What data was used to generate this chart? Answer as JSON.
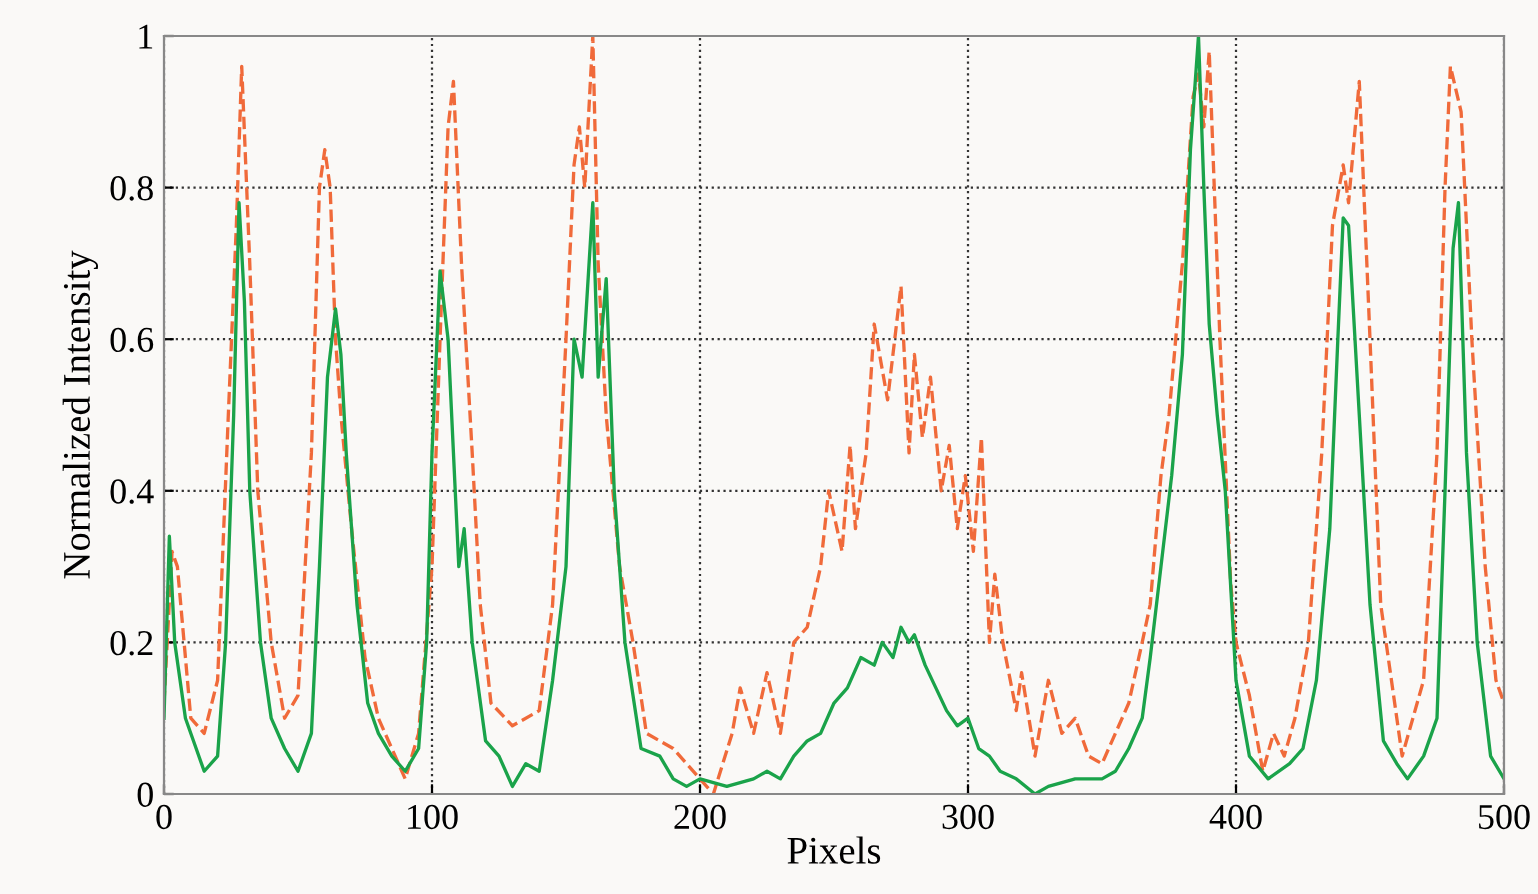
{
  "chart_data": {
    "type": "line",
    "xlabel": "Pixels",
    "ylabel": "Normalized Intensity",
    "xlim": [
      0,
      500
    ],
    "ylim": [
      0,
      1
    ],
    "xticks": [
      0,
      100,
      200,
      300,
      400,
      500
    ],
    "yticks": [
      0,
      0.2,
      0.4,
      0.6,
      0.8,
      1
    ],
    "grid": true,
    "series": [
      {
        "color": "#f06a3a",
        "line_style": "dashed",
        "x": [
          0,
          3,
          5,
          10,
          15,
          20,
          24,
          27,
          29,
          32,
          35,
          40,
          45,
          50,
          55,
          58,
          60,
          62,
          64,
          66,
          70,
          75,
          80,
          85,
          90,
          95,
          100,
          103,
          106,
          108,
          111,
          115,
          118,
          122,
          130,
          140,
          145,
          150,
          153,
          155,
          157,
          160,
          162,
          165,
          170,
          175,
          180,
          190,
          200,
          205,
          212,
          215,
          220,
          225,
          230,
          235,
          240,
          245,
          248,
          253,
          256,
          258,
          262,
          265,
          270,
          275,
          278,
          280,
          283,
          286,
          290,
          293,
          296,
          299,
          302,
          305,
          308,
          310,
          313,
          318,
          320,
          325,
          330,
          335,
          340,
          345,
          350,
          355,
          360,
          365,
          368,
          372,
          375,
          380,
          384,
          386,
          388,
          390,
          394,
          398,
          400,
          405,
          410,
          414,
          418,
          422,
          427,
          432,
          436,
          440,
          442,
          446,
          450,
          454,
          458,
          462,
          466,
          470,
          475,
          478,
          480,
          484,
          488,
          493,
          497,
          500
        ],
        "values": [
          0.12,
          0.32,
          0.3,
          0.1,
          0.08,
          0.15,
          0.5,
          0.75,
          0.96,
          0.7,
          0.4,
          0.2,
          0.1,
          0.13,
          0.45,
          0.8,
          0.85,
          0.8,
          0.6,
          0.5,
          0.35,
          0.18,
          0.1,
          0.06,
          0.02,
          0.08,
          0.3,
          0.6,
          0.88,
          0.94,
          0.7,
          0.45,
          0.25,
          0.12,
          0.09,
          0.11,
          0.25,
          0.6,
          0.83,
          0.88,
          0.8,
          1.0,
          0.7,
          0.5,
          0.3,
          0.2,
          0.08,
          0.06,
          0.02,
          0.0,
          0.08,
          0.14,
          0.08,
          0.16,
          0.08,
          0.2,
          0.22,
          0.3,
          0.4,
          0.32,
          0.46,
          0.35,
          0.45,
          0.62,
          0.52,
          0.67,
          0.45,
          0.58,
          0.47,
          0.55,
          0.4,
          0.46,
          0.35,
          0.42,
          0.32,
          0.47,
          0.2,
          0.29,
          0.2,
          0.11,
          0.16,
          0.05,
          0.15,
          0.08,
          0.1,
          0.05,
          0.04,
          0.08,
          0.12,
          0.2,
          0.25,
          0.42,
          0.5,
          0.7,
          0.92,
          0.95,
          0.88,
          0.98,
          0.6,
          0.28,
          0.2,
          0.13,
          0.03,
          0.08,
          0.05,
          0.1,
          0.2,
          0.45,
          0.75,
          0.83,
          0.78,
          0.94,
          0.6,
          0.25,
          0.15,
          0.05,
          0.1,
          0.15,
          0.45,
          0.8,
          0.96,
          0.9,
          0.6,
          0.3,
          0.15,
          0.12
        ]
      },
      {
        "color": "#1aa34a",
        "line_style": "solid",
        "x": [
          0,
          2,
          4,
          8,
          12,
          15,
          20,
          23,
          26,
          28,
          30,
          32,
          36,
          40,
          45,
          50,
          55,
          58,
          61,
          64,
          66,
          68,
          72,
          76,
          80,
          85,
          90,
          95,
          98,
          100,
          103,
          106,
          108,
          110,
          112,
          115,
          120,
          125,
          130,
          135,
          140,
          145,
          150,
          153,
          156,
          160,
          162,
          165,
          168,
          172,
          178,
          185,
          190,
          195,
          200,
          210,
          220,
          225,
          230,
          235,
          240,
          245,
          250,
          255,
          260,
          265,
          268,
          272,
          275,
          278,
          280,
          284,
          288,
          292,
          296,
          300,
          304,
          308,
          312,
          318,
          325,
          330,
          340,
          350,
          355,
          360,
          365,
          368,
          372,
          376,
          380,
          383,
          386,
          388,
          390,
          393,
          396,
          400,
          405,
          412,
          420,
          425,
          430,
          435,
          438,
          440,
          442,
          446,
          450,
          455,
          460,
          464,
          470,
          475,
          478,
          481,
          483,
          486,
          490,
          495,
          500
        ],
        "values": [
          0.1,
          0.34,
          0.2,
          0.1,
          0.06,
          0.03,
          0.05,
          0.2,
          0.5,
          0.78,
          0.65,
          0.4,
          0.2,
          0.1,
          0.06,
          0.03,
          0.08,
          0.3,
          0.55,
          0.64,
          0.58,
          0.45,
          0.25,
          0.12,
          0.08,
          0.05,
          0.03,
          0.06,
          0.2,
          0.45,
          0.69,
          0.6,
          0.45,
          0.3,
          0.35,
          0.2,
          0.07,
          0.05,
          0.01,
          0.04,
          0.03,
          0.15,
          0.3,
          0.6,
          0.55,
          0.78,
          0.55,
          0.68,
          0.4,
          0.2,
          0.06,
          0.05,
          0.02,
          0.01,
          0.02,
          0.01,
          0.02,
          0.03,
          0.02,
          0.05,
          0.07,
          0.08,
          0.12,
          0.14,
          0.18,
          0.17,
          0.2,
          0.18,
          0.22,
          0.2,
          0.21,
          0.17,
          0.14,
          0.11,
          0.09,
          0.1,
          0.06,
          0.05,
          0.03,
          0.02,
          0.0,
          0.01,
          0.02,
          0.02,
          0.03,
          0.06,
          0.1,
          0.18,
          0.3,
          0.42,
          0.58,
          0.85,
          1.0,
          0.8,
          0.62,
          0.5,
          0.4,
          0.15,
          0.05,
          0.02,
          0.04,
          0.06,
          0.15,
          0.35,
          0.6,
          0.76,
          0.75,
          0.5,
          0.25,
          0.07,
          0.04,
          0.02,
          0.05,
          0.1,
          0.4,
          0.72,
          0.78,
          0.45,
          0.2,
          0.05,
          0.02
        ]
      }
    ]
  }
}
